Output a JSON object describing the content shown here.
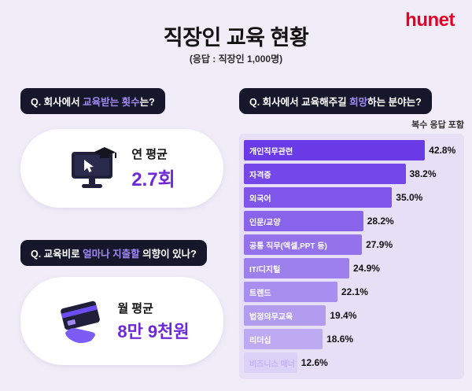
{
  "logo": {
    "text": "hunet",
    "color": "#e60027"
  },
  "header": {
    "title": "직장인 교육 현황",
    "subtitle": "(응답 : 직장인 1,000명)"
  },
  "questions": {
    "q1": {
      "prefix": "Q. 회사에서 ",
      "highlight": "교육받는 횟수",
      "suffix": "는?"
    },
    "q2": {
      "prefix": "Q. 교육비로 ",
      "highlight": "얼마나 지출할",
      "suffix": " 의향이 있나?"
    },
    "q3": {
      "prefix": "Q. 회사에서 교육해주길 ",
      "highlight": "희망",
      "suffix": "하는 분야는?"
    }
  },
  "cards": {
    "frequency": {
      "label": "연 평균",
      "value": "2.7회",
      "icon": "monitor-graduation-icon"
    },
    "budget": {
      "label": "월 평균",
      "value": "8만 9천원",
      "icon": "card-hand-icon"
    }
  },
  "chart_note": "복수 응답 포함",
  "chart_data": {
    "type": "bar",
    "orientation": "horizontal",
    "title": "회사에서 교육해주길 희망하는 분야",
    "note": "복수 응답 포함",
    "categories": [
      "개인직무관련",
      "자격증",
      "외국어",
      "인문/교양",
      "공통 직무(엑셀,PPT 등)",
      "IT/디지털",
      "트렌드",
      "법정의무교육",
      "리더십",
      "비즈니스 매너"
    ],
    "values": [
      42.8,
      38.2,
      35.0,
      28.2,
      27.9,
      24.9,
      22.1,
      19.4,
      18.6,
      12.6
    ],
    "value_labels": [
      "42.8%",
      "38.2%",
      "35.0%",
      "28.2%",
      "27.9%",
      "24.9%",
      "22.1%",
      "19.4%",
      "18.6%",
      "12.6%"
    ],
    "xlim": [
      0,
      45
    ],
    "unit": "%",
    "legend": "none",
    "grid": false,
    "bar_colors": [
      "#6a3ae6",
      "#7448e8",
      "#7f56e9",
      "#8964ea",
      "#9372ec",
      "#9e80ed",
      "#a88eef",
      "#b29cf0",
      "#bdaaf2",
      "#dcd2f8"
    ]
  },
  "colors": {
    "background": "#f1edf8",
    "accent_purple": "#6d28d9",
    "highlight_purple": "#a18af5",
    "pill_bg": "#17172b",
    "panel_bg": "#e6dff6",
    "logo_red": "#e60027"
  }
}
